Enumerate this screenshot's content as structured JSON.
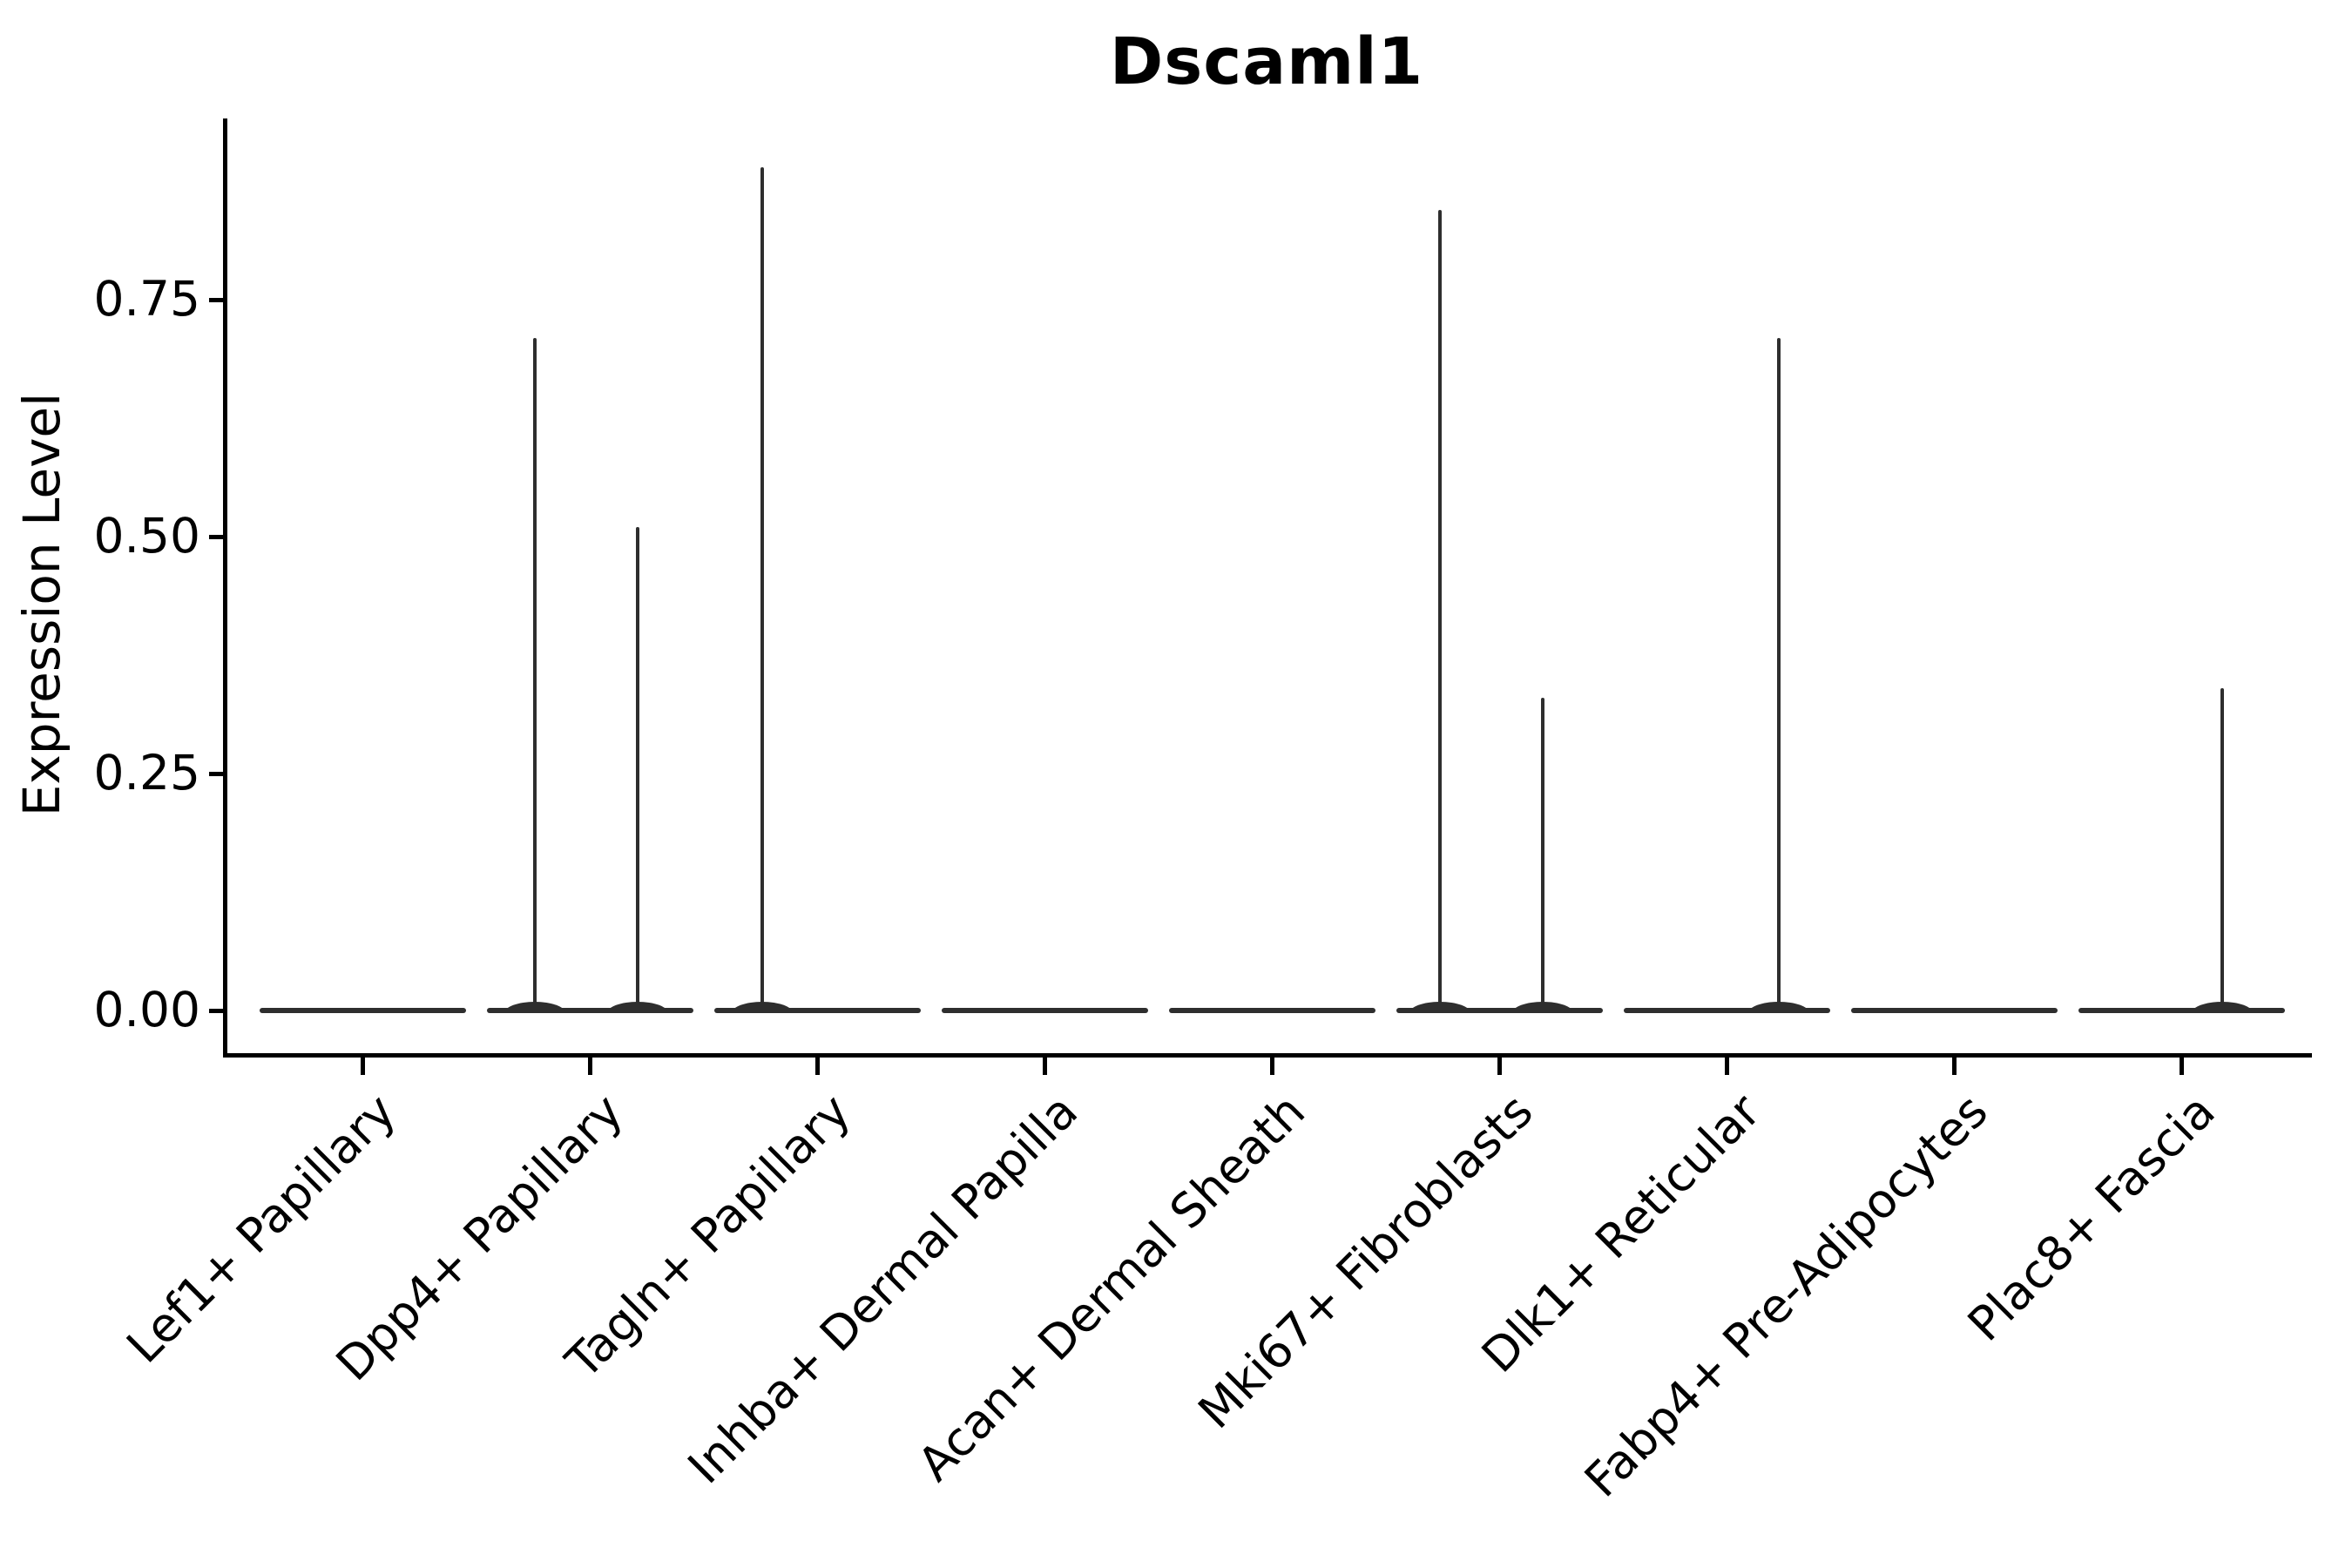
{
  "chart_data": {
    "type": "violin",
    "title": "Dscaml1",
    "xlabel": "",
    "ylabel": "Expression Level",
    "ylim": [
      -0.045,
      0.94
    ],
    "grid": false,
    "legend": "none",
    "ytick_values": [
      0.0,
      0.25,
      0.5,
      0.75
    ],
    "ytick_labels": [
      "0.00",
      "0.25",
      "0.50",
      "0.75"
    ],
    "categories": [
      "Lef1+ Papillary",
      "Dpp4+ Papillary",
      "Tagln+ Papillary",
      "Inhba+ Dermal Papilla",
      "Acan+ Dermal Sheath",
      "Mki67+ Fibroblasts",
      "Dlk1+ Reticular",
      "Fabp4+ Pre-Adipocytes",
      "Plac8+ Fascia"
    ],
    "series": [
      {
        "name": "Lef1+ Papillary",
        "baseline_value": 0,
        "spikes": []
      },
      {
        "name": "Dpp4+ Papillary",
        "baseline_value": 0,
        "spikes": [
          {
            "value": 0.71,
            "offset": -0.24
          },
          {
            "value": 0.51,
            "offset": 0.21
          }
        ]
      },
      {
        "name": "Tagln+ Papillary",
        "baseline_value": 0,
        "spikes": [
          {
            "value": 0.89,
            "offset": -0.24
          }
        ]
      },
      {
        "name": "Inhba+ Dermal Papilla",
        "baseline_value": 0,
        "spikes": []
      },
      {
        "name": "Acan+ Dermal Sheath",
        "baseline_value": 0,
        "spikes": []
      },
      {
        "name": "Mki67+ Fibroblasts",
        "baseline_value": 0,
        "spikes": [
          {
            "value": 0.845,
            "offset": -0.26
          },
          {
            "value": 0.33,
            "offset": 0.19
          }
        ]
      },
      {
        "name": "Dlk1+ Reticular",
        "baseline_value": 0,
        "spikes": [
          {
            "value": 0.71,
            "offset": 0.23
          }
        ]
      },
      {
        "name": "Fabp4+ Pre-Adipocytes",
        "baseline_value": 0,
        "spikes": []
      },
      {
        "name": "Plac8+ Fascia",
        "baseline_value": 0,
        "spikes": [
          {
            "value": 0.34,
            "offset": 0.18
          }
        ]
      }
    ],
    "violin_rel_width": 0.91,
    "colors": {
      "violin_stroke": "#2e2e2e",
      "axis": "#000000",
      "text": "#000000",
      "background": "#ffffff"
    }
  }
}
